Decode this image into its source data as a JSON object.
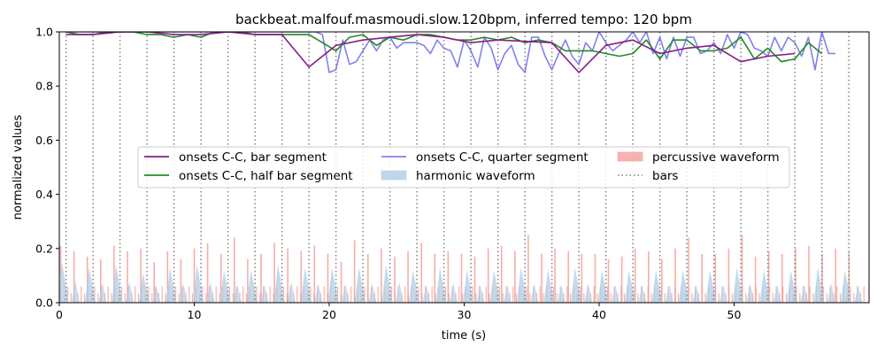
{
  "chart_data": {
    "type": "line",
    "title": "backbeat.malfouf.masmoudi.slow.120bpm, inferred tempo: 120 bpm",
    "xlabel": "time (s)",
    "ylabel": "normalized values",
    "xlim": [
      0,
      60
    ],
    "ylim": [
      0,
      1.0
    ],
    "x_ticks": [
      0,
      10,
      20,
      30,
      40,
      50
    ],
    "x_tick_labels": [
      "0",
      "10",
      "20",
      "30",
      "40",
      "50"
    ],
    "y_ticks": [
      0.0,
      0.2,
      0.4,
      0.6,
      0.8,
      1.0
    ],
    "y_tick_labels": [
      "0.0",
      "0.2",
      "0.4",
      "0.6",
      "0.8",
      "1.0"
    ],
    "grid": false,
    "legend_placement": "center",
    "legend": [
      {
        "label": "onsets C-C, bar segment",
        "kind": "line",
        "color": "#8b1a8b"
      },
      {
        "label": "onsets C-C, half bar segment",
        "kind": "line",
        "color": "#228b22"
      },
      {
        "label": "onsets C-C, quarter segment",
        "kind": "line",
        "color": "#6b6be8"
      },
      {
        "label": "harmonic waveform",
        "kind": "patch",
        "color": "#b0cde6"
      },
      {
        "label": "percussive waveform",
        "kind": "patch",
        "color": "#f4a09a"
      },
      {
        "label": "bars",
        "kind": "dotted",
        "color": "#808080"
      }
    ],
    "series": [
      {
        "name": "onsets C-C, bar segment",
        "color": "#8b1a8b",
        "x": [
          0.5,
          2.5,
          4.5,
          6.5,
          8.5,
          10.5,
          12.5,
          14.5,
          16.5,
          18.5,
          20.5,
          22.5,
          24.5,
          26.5,
          28.5,
          30.5,
          32.5,
          34.5,
          36.5,
          38.5,
          40.5,
          42.5,
          44.5,
          46.5,
          48.5,
          50.5,
          52.5,
          54.5
        ],
        "y": [
          0.99,
          0.99,
          1.0,
          1.0,
          0.99,
          0.99,
          1.0,
          0.99,
          0.99,
          0.87,
          0.95,
          0.97,
          0.98,
          0.99,
          0.98,
          0.96,
          0.97,
          0.965,
          0.96,
          0.85,
          0.95,
          0.97,
          0.92,
          0.94,
          0.95,
          0.89,
          0.91,
          0.92
        ]
      },
      {
        "name": "onsets C-C, half bar segment",
        "color": "#228b22",
        "x": [
          0.5,
          1.5,
          2.5,
          3.5,
          4.5,
          5.5,
          6.5,
          7.5,
          8.5,
          9.5,
          10.5,
          11.5,
          12.5,
          13.5,
          14.5,
          15.5,
          16.5,
          17.5,
          18.5,
          19.5,
          20.5,
          21.5,
          22.5,
          23.5,
          24.5,
          25.5,
          26.5,
          27.5,
          28.5,
          29.5,
          30.5,
          31.5,
          32.5,
          33.5,
          34.5,
          35.5,
          36.5,
          37.5,
          38.5,
          39.5,
          40.5,
          41.5,
          42.5,
          43.5,
          44.5,
          45.5,
          46.5,
          47.5,
          48.5,
          49.5,
          50.5,
          51.5,
          52.5,
          53.5,
          54.5,
          55.5,
          56.5
        ],
        "y": [
          1.0,
          0.99,
          0.99,
          1.0,
          1.0,
          1.0,
          0.99,
          0.99,
          0.98,
          0.99,
          0.98,
          1.0,
          1.0,
          1.0,
          0.99,
          0.99,
          0.99,
          0.99,
          0.99,
          0.96,
          0.93,
          0.98,
          0.99,
          0.95,
          0.98,
          0.97,
          0.99,
          0.99,
          0.98,
          0.97,
          0.97,
          0.98,
          0.97,
          0.98,
          0.96,
          0.97,
          0.96,
          0.93,
          0.93,
          0.93,
          0.92,
          0.91,
          0.92,
          0.97,
          0.9,
          0.97,
          0.97,
          0.93,
          0.93,
          0.94,
          0.98,
          0.9,
          0.94,
          0.89,
          0.9,
          0.96,
          0.92
        ]
      },
      {
        "name": "onsets C-C, quarter segment",
        "color": "#6b6be8",
        "x": [
          0.5,
          1.0,
          1.5,
          2.0,
          2.5,
          3.0,
          3.5,
          4.0,
          4.5,
          5.0,
          5.5,
          6.0,
          6.5,
          7.0,
          7.5,
          8.0,
          8.5,
          9.0,
          9.5,
          10.0,
          10.5,
          11.0,
          11.5,
          12.0,
          12.5,
          13.0,
          13.5,
          14.0,
          14.5,
          15.0,
          15.5,
          16.0,
          16.5,
          17.0,
          17.5,
          18.0,
          18.5,
          19.0,
          19.5,
          20.0,
          20.5,
          21.0,
          21.5,
          22.0,
          22.5,
          23.0,
          23.5,
          24.0,
          24.5,
          25.0,
          25.5,
          26.0,
          26.5,
          27.0,
          27.5,
          28.0,
          28.5,
          29.0,
          29.5,
          30.0,
          30.5,
          31.0,
          31.5,
          32.0,
          32.5,
          33.0,
          33.5,
          34.0,
          34.5,
          35.0,
          35.5,
          36.0,
          36.5,
          37.0,
          37.5,
          38.0,
          38.5,
          39.0,
          39.5,
          40.0,
          40.5,
          41.0,
          41.5,
          42.0,
          42.5,
          43.0,
          43.5,
          44.0,
          44.5,
          45.0,
          45.5,
          46.0,
          46.5,
          47.0,
          47.5,
          48.0,
          48.5,
          49.0,
          49.5,
          50.0,
          50.5,
          51.0,
          51.5,
          52.0,
          52.5,
          53.0,
          53.5,
          54.0,
          54.5,
          55.0,
          55.5,
          56.0,
          56.5,
          57.0,
          57.5
        ],
        "y": [
          1.0,
          1.0,
          1.0,
          1.0,
          1.0,
          1.0,
          1.0,
          1.0,
          1.0,
          1.0,
          1.0,
          1.0,
          1.0,
          1.0,
          1.0,
          1.0,
          1.0,
          1.0,
          1.0,
          1.0,
          1.0,
          1.0,
          1.0,
          1.0,
          1.0,
          1.0,
          1.0,
          1.0,
          1.0,
          1.0,
          1.0,
          1.0,
          1.0,
          1.0,
          1.0,
          1.0,
          1.0,
          1.0,
          0.99,
          0.85,
          0.86,
          0.97,
          0.88,
          0.89,
          0.93,
          0.97,
          0.93,
          0.97,
          0.98,
          0.94,
          0.96,
          0.96,
          0.96,
          0.95,
          0.92,
          0.97,
          0.94,
          0.93,
          0.87,
          0.97,
          0.93,
          0.87,
          0.98,
          0.94,
          0.86,
          0.92,
          0.95,
          0.88,
          0.85,
          0.98,
          0.98,
          0.91,
          0.86,
          0.92,
          0.97,
          0.91,
          0.88,
          0.96,
          0.93,
          1.0,
          0.96,
          0.93,
          0.95,
          0.97,
          1.0,
          0.96,
          1.0,
          0.92,
          0.98,
          0.9,
          0.98,
          0.91,
          0.98,
          0.98,
          0.92,
          0.93,
          0.96,
          0.92,
          0.99,
          0.94,
          1.0,
          0.99,
          0.94,
          0.93,
          0.91,
          0.98,
          0.93,
          0.98,
          0.96,
          0.91,
          0.98,
          0.86,
          1.0,
          0.92,
          0.92
        ]
      }
    ],
    "bars_positions": [
      0.5,
      2.5,
      4.5,
      6.5,
      8.5,
      10.5,
      12.5,
      14.5,
      16.5,
      18.5,
      20.5,
      22.5,
      24.5,
      26.5,
      28.5,
      30.5,
      32.5,
      34.5,
      36.5,
      38.5,
      40.5,
      42.5,
      44.5,
      46.5,
      48.5,
      50.5,
      52.5,
      54.5,
      56.5,
      58.5
    ],
    "percussive_waveform": {
      "color": "#f4a09a",
      "stroke_period_s": 0.25,
      "stroke_duration_s": 59.5,
      "accent_period_s": 0.5,
      "peak_values": [
        0.21,
        0.19,
        0.17,
        0.16,
        0.21,
        0.19,
        0.2,
        0.15,
        0.19,
        0.16,
        0.2,
        0.22,
        0.18,
        0.24,
        0.16,
        0.18,
        0.22,
        0.2,
        0.19,
        0.21,
        0.18,
        0.15,
        0.23,
        0.18,
        0.2,
        0.17,
        0.19,
        0.22,
        0.18,
        0.19,
        0.18,
        0.17,
        0.2,
        0.21,
        0.19,
        0.25,
        0.18,
        0.2,
        0.19,
        0.18,
        0.18,
        0.16,
        0.17,
        0.2,
        0.19,
        0.16,
        0.2,
        0.24,
        0.18,
        0.18,
        0.2,
        0.25,
        0.17,
        0.19,
        0.18,
        0.2,
        0.21,
        0.18,
        0.2,
        0.19
      ]
    },
    "harmonic_waveform": {
      "color": "#b0cde6",
      "peak_values": [
        0.15,
        0.13,
        0.14,
        0.11,
        0.13,
        0.14,
        0.12,
        0.12,
        0.14,
        0.13,
        0.13,
        0.13,
        0.14,
        0.12,
        0.13,
        0.12,
        0.12,
        0.13,
        0.12,
        0.13,
        0.12,
        0.12,
        0.12,
        0.12,
        0.12,
        0.13,
        0.12,
        0.12,
        0.13,
        0.12
      ]
    }
  }
}
